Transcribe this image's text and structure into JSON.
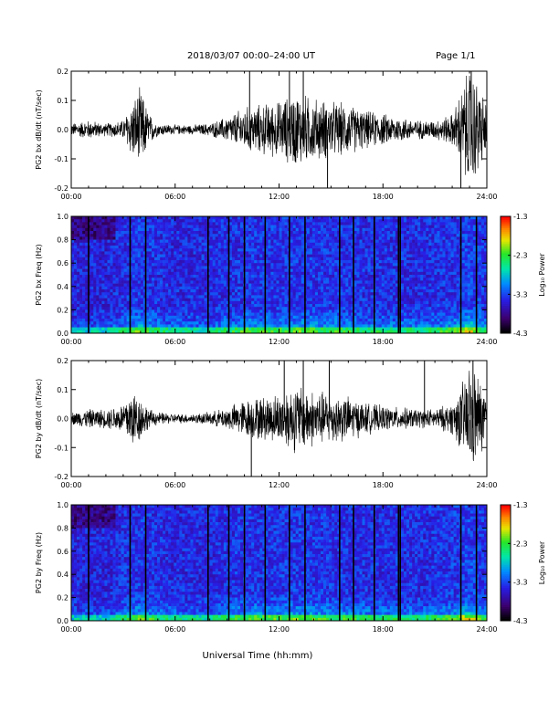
{
  "header": {
    "title": "2018/03/07  00:00–24:00 UT",
    "page": "Page 1/1"
  },
  "xlabel": "Universal Time (hh:mm)",
  "colorbar": {
    "label": "Log₁₀ Power",
    "ticks": [
      "-1.3",
      "-2.3",
      "-3.3",
      "-4.3"
    ],
    "range": [
      -4.3,
      -1.3
    ]
  },
  "chart_data": [
    {
      "type": "line",
      "panel": "bx-timeseries",
      "ylabel": "PG2 bx dB/dt (nT/sec)",
      "x_range_hours": [
        0,
        24
      ],
      "xticks": [
        "00:00",
        "06:00",
        "12:00",
        "18:00",
        "24:00"
      ],
      "ylim": [
        -0.2,
        0.2
      ],
      "yticks": [
        "0.2",
        "0.1",
        "0.0",
        "-0.1",
        "-0.2"
      ],
      "envelope": {
        "hours": [
          0,
          1,
          2,
          3,
          3.5,
          4,
          4.5,
          5,
          6,
          7,
          8,
          9,
          10,
          11,
          12,
          13,
          14,
          15,
          16,
          17,
          18,
          19,
          20,
          21,
          22,
          22.5,
          23,
          23.5,
          24
        ],
        "amplitude": [
          0.02,
          0.03,
          0.02,
          0.03,
          0.09,
          0.13,
          0.05,
          0.02,
          0.015,
          0.015,
          0.02,
          0.04,
          0.07,
          0.08,
          0.09,
          0.12,
          0.1,
          0.09,
          0.08,
          0.06,
          0.05,
          0.04,
          0.03,
          0.03,
          0.05,
          0.12,
          0.2,
          0.15,
          0.08
        ]
      },
      "spikes": [
        {
          "hour": 10.3,
          "value": 0.2
        },
        {
          "hour": 12.6,
          "value": 0.2
        },
        {
          "hour": 13.4,
          "value": 0.2
        },
        {
          "hour": 14.8,
          "value": -0.2
        },
        {
          "hour": 22.5,
          "value": -0.2
        },
        {
          "hour": 23.1,
          "value": 0.2
        }
      ]
    },
    {
      "type": "heatmap",
      "panel": "bx-spectrogram",
      "ylabel": "PG2 bx Freq (Hz)",
      "x_range_hours": [
        0,
        24
      ],
      "xticks": [
        "00:00",
        "06:00",
        "12:00",
        "18:00",
        "24:00"
      ],
      "ylim": [
        0.0,
        1.0
      ],
      "yticks": [
        "1.0",
        "0.8",
        "0.6",
        "0.4",
        "0.2",
        "0.0"
      ],
      "z_range": [
        -4.3,
        -1.3
      ],
      "activity": {
        "hours": [
          0,
          2,
          3,
          4,
          5,
          6,
          8,
          10,
          12,
          13,
          14,
          16,
          18,
          20,
          22,
          23,
          24
        ],
        "level": [
          0.3,
          0.3,
          0.5,
          0.7,
          0.5,
          0.4,
          0.4,
          0.6,
          0.6,
          0.65,
          0.6,
          0.55,
          0.5,
          0.45,
          0.6,
          0.85,
          0.5
        ]
      },
      "gap_lines_hours": [
        1.0,
        3.4,
        4.3,
        7.9,
        9.1,
        10.0,
        11.2,
        12.6,
        13.5,
        15.5,
        16.3,
        17.5,
        18.9,
        19.0,
        22.5,
        23.4
      ]
    },
    {
      "type": "line",
      "panel": "by-timeseries",
      "ylabel": "PG2 by dB/dt (nT/sec)",
      "x_range_hours": [
        0,
        24
      ],
      "xticks": [
        "00:00",
        "06:00",
        "12:00",
        "18:00",
        "24:00"
      ],
      "ylim": [
        -0.2,
        0.2
      ],
      "yticks": [
        "0.2",
        "0.1",
        "0.0",
        "-0.1",
        "-0.2"
      ],
      "envelope": {
        "hours": [
          0,
          1,
          2,
          3,
          3.5,
          4,
          4.5,
          5,
          6,
          7,
          8,
          9,
          10,
          11,
          12,
          13,
          14,
          15,
          16,
          17,
          18,
          19,
          20,
          21,
          22,
          22.5,
          23,
          23.5,
          24
        ],
        "amplitude": [
          0.02,
          0.03,
          0.03,
          0.05,
          0.1,
          0.07,
          0.03,
          0.02,
          0.015,
          0.015,
          0.02,
          0.035,
          0.06,
          0.07,
          0.08,
          0.11,
          0.09,
          0.08,
          0.07,
          0.05,
          0.04,
          0.035,
          0.03,
          0.03,
          0.05,
          0.1,
          0.18,
          0.14,
          0.07
        ]
      },
      "spikes": [
        {
          "hour": 10.4,
          "value": -0.2
        },
        {
          "hour": 12.3,
          "value": 0.2
        },
        {
          "hour": 13.4,
          "value": 0.2
        },
        {
          "hour": 14.9,
          "value": 0.2
        },
        {
          "hour": 20.4,
          "value": 0.2
        },
        {
          "hour": 23.2,
          "value": 0.2
        }
      ]
    },
    {
      "type": "heatmap",
      "panel": "by-spectrogram",
      "ylabel": "PG2 by Freq (Hz)",
      "x_range_hours": [
        0,
        24
      ],
      "xticks": [
        "00:00",
        "06:00",
        "12:00",
        "18:00",
        "24:00"
      ],
      "ylim": [
        0.0,
        1.0
      ],
      "yticks": [
        "1.0",
        "0.8",
        "0.6",
        "0.4",
        "0.2",
        "0.0"
      ],
      "z_range": [
        -4.3,
        -1.3
      ],
      "activity": {
        "hours": [
          0,
          2,
          3,
          4,
          5,
          6,
          8,
          10,
          12,
          13,
          14,
          16,
          18,
          20,
          22,
          23,
          24
        ],
        "level": [
          0.3,
          0.3,
          0.5,
          0.65,
          0.5,
          0.4,
          0.4,
          0.6,
          0.6,
          0.65,
          0.6,
          0.55,
          0.5,
          0.45,
          0.6,
          0.85,
          0.5
        ]
      },
      "gap_lines_hours": [
        1.0,
        3.4,
        4.3,
        7.9,
        9.1,
        10.0,
        11.2,
        12.6,
        13.5,
        15.5,
        16.3,
        17.5,
        18.9,
        19.0,
        22.5,
        23.4
      ]
    }
  ]
}
